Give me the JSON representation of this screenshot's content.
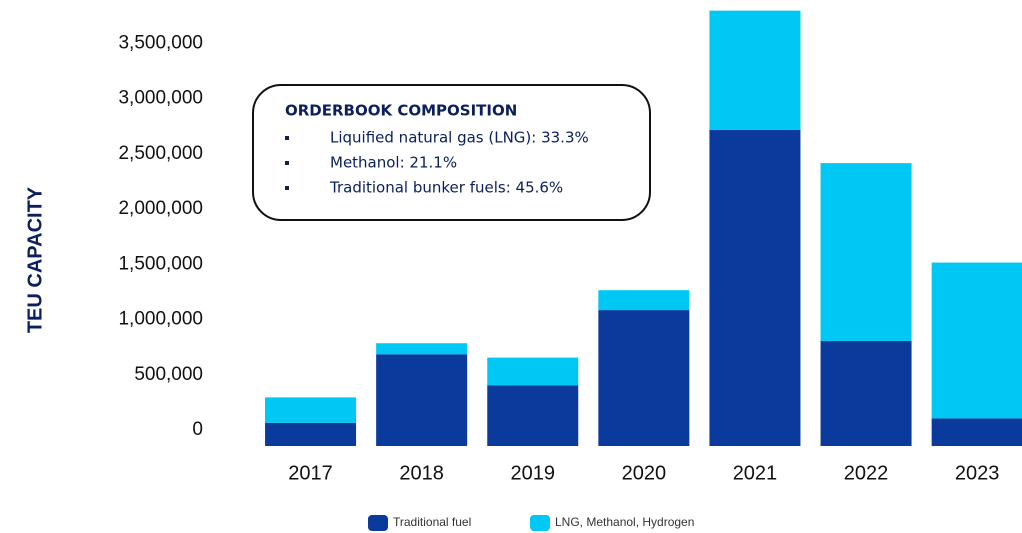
{
  "chart_data": {
    "type": "stacked-bar",
    "y_label": "TEU CAPACITY",
    "categories": [
      "2017",
      "2018",
      "2019",
      "2020",
      "2021",
      "2022",
      "2023"
    ],
    "series": [
      {
        "name": "Traditional fuel",
        "color": "#0a3a9c",
        "values": [
          210000,
          830000,
          550000,
          1230000,
          2860000,
          950000,
          250000
        ]
      },
      {
        "name": "LNG, Methanol, Hydrogen",
        "color": "#00c8f5",
        "values": [
          230000,
          100000,
          250000,
          180000,
          1080000,
          1610000,
          1410000
        ]
      }
    ],
    "ylim": [
      0,
      4000000
    ],
    "yticks": [
      0,
      {
        "value": 500000,
        "label": "500,000"
      },
      {
        "value": 1000000,
        "label": "1,000,000"
      },
      {
        "value": 1500000,
        "label": "1,500,000"
      },
      {
        "value": 2000000,
        "label": "2,000,000"
      },
      {
        "value": 2500000,
        "label": "2,500,000"
      },
      {
        "value": 3000000,
        "label": "3,000,000"
      },
      {
        "value": 3500000,
        "label": "3,500,000"
      }
    ],
    "annotation": {
      "title": "ORDERBOOK COMPOSITION",
      "items": [
        "Liquified natural gas (LNG): 33.3%",
        "Methanol: 21.1%",
        "Traditional bunker fuels: 45.6%"
      ]
    },
    "legend": "bottom"
  }
}
